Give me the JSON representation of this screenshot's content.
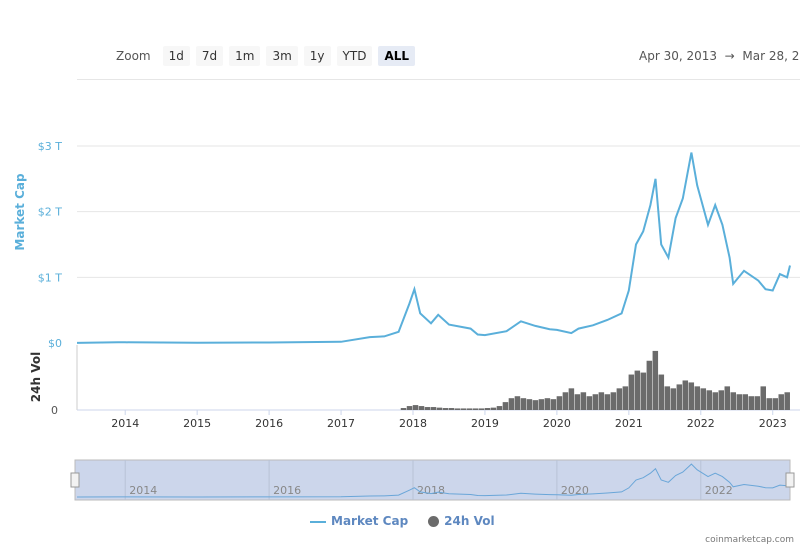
{
  "toolbar": {
    "zoom_label": "Zoom",
    "buttons": [
      "1d",
      "7d",
      "1m",
      "3m",
      "1y",
      "YTD",
      "ALL"
    ],
    "selected": "ALL",
    "range_from": "Apr 30, 2013",
    "arrow": "→",
    "range_to": "Mar 28, 2"
  },
  "colors": {
    "market_cap": "#5aafda",
    "volume": "#6b6b6b",
    "navigator_fill": "#ccd6eb",
    "axis_label": "#5aafda"
  },
  "chart_data": {
    "type": "line",
    "ylabel": "Market Cap",
    "ylabel2": "24h Vol",
    "y_ticks": [
      "$0",
      "$1 T",
      "$2 T",
      "$3 T"
    ],
    "ylim": [
      0,
      3
    ],
    "vol_ticks": [
      "0"
    ],
    "x_ticks": [
      "2014",
      "2015",
      "2016",
      "2017",
      "2018",
      "2019",
      "2020",
      "2021",
      "2022",
      "2023"
    ],
    "xlim": [
      "2013-04-30",
      "2023-03-28"
    ],
    "grid": true,
    "series": [
      {
        "name": "Market Cap",
        "unit": "T USD",
        "points": [
          [
            2013.33,
            0.002
          ],
          [
            2013.9,
            0.012
          ],
          [
            2014.0,
            0.01
          ],
          [
            2015.0,
            0.004
          ],
          [
            2016.0,
            0.007
          ],
          [
            2017.0,
            0.018
          ],
          [
            2017.4,
            0.09
          ],
          [
            2017.6,
            0.1
          ],
          [
            2017.8,
            0.17
          ],
          [
            2017.95,
            0.6
          ],
          [
            2018.02,
            0.82
          ],
          [
            2018.1,
            0.45
          ],
          [
            2018.25,
            0.3
          ],
          [
            2018.35,
            0.43
          ],
          [
            2018.5,
            0.28
          ],
          [
            2018.8,
            0.22
          ],
          [
            2018.9,
            0.13
          ],
          [
            2019.0,
            0.12
          ],
          [
            2019.3,
            0.18
          ],
          [
            2019.5,
            0.33
          ],
          [
            2019.7,
            0.26
          ],
          [
            2019.9,
            0.21
          ],
          [
            2020.0,
            0.2
          ],
          [
            2020.2,
            0.15
          ],
          [
            2020.3,
            0.22
          ],
          [
            2020.5,
            0.27
          ],
          [
            2020.7,
            0.35
          ],
          [
            2020.9,
            0.45
          ],
          [
            2021.0,
            0.8
          ],
          [
            2021.1,
            1.5
          ],
          [
            2021.2,
            1.7
          ],
          [
            2021.3,
            2.1
          ],
          [
            2021.37,
            2.5
          ],
          [
            2021.45,
            1.5
          ],
          [
            2021.55,
            1.3
          ],
          [
            2021.65,
            1.9
          ],
          [
            2021.75,
            2.2
          ],
          [
            2021.87,
            2.9
          ],
          [
            2021.95,
            2.4
          ],
          [
            2022.0,
            2.2
          ],
          [
            2022.1,
            1.8
          ],
          [
            2022.2,
            2.1
          ],
          [
            2022.3,
            1.8
          ],
          [
            2022.4,
            1.3
          ],
          [
            2022.45,
            0.9
          ],
          [
            2022.6,
            1.1
          ],
          [
            2022.8,
            0.95
          ],
          [
            2022.9,
            0.82
          ],
          [
            2023.0,
            0.8
          ],
          [
            2023.1,
            1.05
          ],
          [
            2023.2,
            1.0
          ],
          [
            2023.24,
            1.18
          ]
        ]
      },
      {
        "name": "24h Vol",
        "type": "bar",
        "start": 2017.83,
        "step_months": 1,
        "values": [
          10,
          20,
          25,
          20,
          15,
          15,
          12,
          10,
          10,
          8,
          8,
          8,
          8,
          8,
          10,
          12,
          20,
          40,
          60,
          70,
          60,
          55,
          50,
          55,
          60,
          55,
          70,
          90,
          110,
          80,
          90,
          70,
          80,
          90,
          80,
          90,
          110,
          120,
          180,
          200,
          190,
          250,
          300,
          180,
          120,
          110,
          130,
          150,
          140,
          120,
          110,
          100,
          90,
          100,
          120,
          90,
          80,
          80,
          70,
          70,
          120,
          60,
          60,
          80,
          90
        ],
        "vlim": [
          0,
          330
        ]
      }
    ],
    "navigator": {
      "x_ticks": [
        "2014",
        "2016",
        "2018",
        "2020",
        "2022"
      ]
    },
    "legend": [
      "Market Cap",
      "24h Vol"
    ],
    "legend_position": "bottom"
  },
  "credit": "coinmarketcap.com"
}
